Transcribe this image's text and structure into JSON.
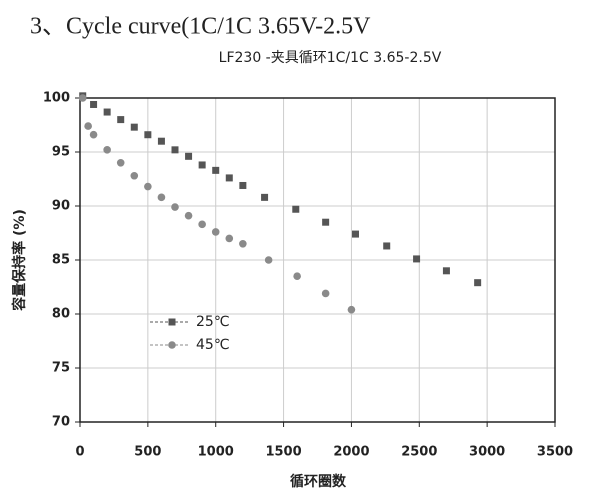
{
  "header": {
    "text": "3、Cycle curve(1C/1C 3.65V-2.5V"
  },
  "chart_data": {
    "type": "scatter",
    "title": "LF230 -夹具循环1C/1C 3.65-2.5V",
    "x_label": "循环圈数",
    "y_label": "容量保持率 (%)",
    "xlim": [
      0,
      3500
    ],
    "xticks": [
      0,
      500,
      1000,
      1500,
      2000,
      2500,
      3000,
      3500
    ],
    "ylim": [
      70,
      100
    ],
    "yticks": [
      70,
      75,
      80,
      85,
      90,
      95,
      100
    ],
    "grid": true,
    "legend": "lower-left",
    "series": [
      {
        "name": "25℃",
        "color": "#555555",
        "marker": "square",
        "x": [
          20,
          100,
          200,
          300,
          400,
          500,
          600,
          700,
          800,
          900,
          1000,
          1100,
          1200,
          1360,
          1590,
          1810,
          2030,
          2260,
          2480,
          2700,
          2930
        ],
        "values": [
          100.2,
          99.4,
          98.7,
          98.0,
          97.3,
          96.6,
          96.0,
          95.2,
          94.6,
          93.8,
          93.3,
          92.6,
          91.9,
          90.8,
          89.7,
          88.5,
          87.4,
          86.3,
          85.1,
          84.0,
          82.9
        ]
      },
      {
        "name": "45℃",
        "color": "#8a8a8a",
        "marker": "circle",
        "x": [
          20,
          60,
          100,
          200,
          300,
          400,
          500,
          600,
          700,
          800,
          900,
          1000,
          1100,
          1200,
          1390,
          1600,
          1810,
          2000
        ],
        "values": [
          100.0,
          97.4,
          96.6,
          95.2,
          94.0,
          92.8,
          91.8,
          90.8,
          89.9,
          89.1,
          88.3,
          87.6,
          87.0,
          86.5,
          85.0,
          83.5,
          81.9,
          80.4
        ]
      }
    ]
  }
}
